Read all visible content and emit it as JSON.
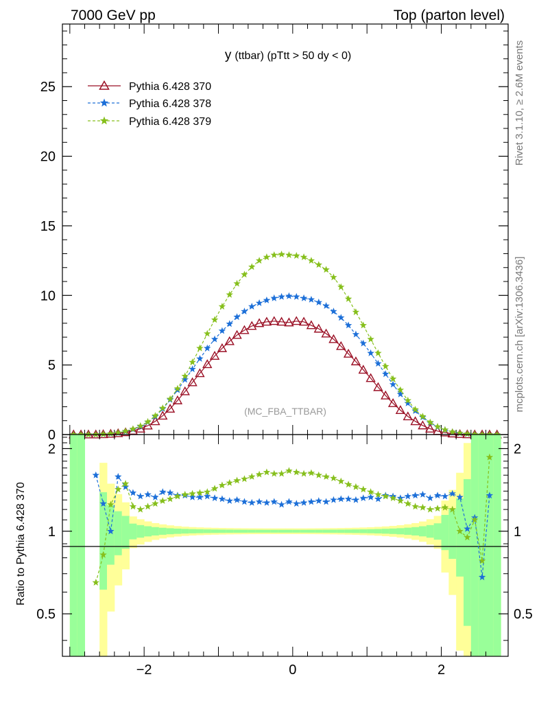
{
  "header": {
    "left": "7000 GeV pp",
    "right": "Top (parton level)"
  },
  "side_labels": {
    "rivet": "Rivet 3.1.10, ≥ 2.6M events",
    "mcplots": "mcplots.cern.ch [arXiv:1306.3436]"
  },
  "main_title_main": "y",
  "main_title_sub": "(ttbar) (pTtt > 50 dy < 0)",
  "watermark": "(MC_FBA_TTBAR)",
  "ratio_ylabel": "Ratio to Pythia 6.428 370",
  "colors": {
    "s370": "#9a0f24",
    "s378": "#1c6fd8",
    "s379": "#86bf1c",
    "band_yellow": "#ffff99",
    "band_green": "#99ff99"
  },
  "chart_data": [
    {
      "type": "line",
      "panel": "main",
      "xlim": [
        -3.1,
        2.9
      ],
      "ylim": [
        0,
        29.5
      ],
      "yticks": [
        0,
        5,
        10,
        15,
        20,
        25
      ],
      "x": [
        -2.95,
        -2.85,
        -2.75,
        -2.65,
        -2.55,
        -2.45,
        -2.35,
        -2.25,
        -2.15,
        -2.05,
        -1.95,
        -1.85,
        -1.75,
        -1.65,
        -1.55,
        -1.45,
        -1.35,
        -1.25,
        -1.15,
        -1.05,
        -0.95,
        -0.85,
        -0.75,
        -0.65,
        -0.55,
        -0.45,
        -0.35,
        -0.25,
        -0.15,
        -0.05,
        0.05,
        0.15,
        0.25,
        0.35,
        0.45,
        0.55,
        0.65,
        0.75,
        0.85,
        0.95,
        1.05,
        1.15,
        1.25,
        1.35,
        1.45,
        1.55,
        1.65,
        1.75,
        1.85,
        1.95,
        2.05,
        2.15,
        2.25,
        2.35,
        2.45,
        2.55,
        2.65,
        2.75
      ],
      "series": [
        {
          "name": "Pythia 6.428 370",
          "values": [
            0,
            0,
            0,
            0,
            0.02,
            0.05,
            0.09,
            0.16,
            0.27,
            0.42,
            0.64,
            0.95,
            1.35,
            1.85,
            2.45,
            3.1,
            3.75,
            4.4,
            5.05,
            5.65,
            6.2,
            6.7,
            7.15,
            7.5,
            7.8,
            8.0,
            8.1,
            8.15,
            8.1,
            8.05,
            8.15,
            8.1,
            7.85,
            7.6,
            7.25,
            6.85,
            6.35,
            5.8,
            5.25,
            4.65,
            4.05,
            3.4,
            2.8,
            2.25,
            1.75,
            1.3,
            0.95,
            0.65,
            0.42,
            0.25,
            0.14,
            0.07,
            0.03,
            0.01,
            0,
            0,
            0,
            0
          ]
        },
        {
          "name": "Pythia 6.428 378",
          "values": [
            0,
            0,
            0,
            0,
            0.03,
            0.06,
            0.12,
            0.22,
            0.37,
            0.58,
            0.9,
            1.3,
            1.85,
            2.5,
            3.2,
            3.95,
            4.7,
            5.45,
            6.2,
            6.85,
            7.45,
            7.95,
            8.45,
            8.85,
            9.2,
            9.45,
            9.65,
            9.8,
            9.9,
            9.95,
            9.9,
            9.8,
            9.7,
            9.5,
            9.25,
            8.85,
            8.4,
            7.85,
            7.2,
            6.55,
            5.85,
            5.1,
            4.35,
            3.6,
            2.9,
            2.25,
            1.7,
            1.25,
            0.85,
            0.55,
            0.33,
            0.18,
            0.09,
            0.04,
            0.015,
            0,
            0,
            0
          ]
        },
        {
          "name": "Pythia 6.428 379",
          "values": [
            0,
            0,
            0,
            0,
            0.03,
            0.07,
            0.13,
            0.24,
            0.4,
            0.62,
            0.92,
            1.35,
            1.9,
            2.55,
            3.3,
            4.2,
            5.2,
            6.2,
            7.25,
            8.25,
            9.2,
            10.05,
            10.85,
            11.5,
            12.05,
            12.5,
            12.75,
            12.9,
            12.95,
            12.9,
            12.85,
            12.75,
            12.5,
            12.2,
            11.85,
            11.3,
            10.6,
            9.75,
            8.8,
            7.85,
            6.85,
            5.85,
            4.9,
            4.0,
            3.2,
            2.45,
            1.8,
            1.3,
            0.88,
            0.57,
            0.34,
            0.19,
            0.1,
            0.05,
            0.02,
            0,
            0,
            0
          ]
        }
      ],
      "legend": "top-left"
    },
    {
      "type": "line",
      "panel": "ratio",
      "ylabel": "Ratio to Pythia 6.428 370",
      "xlim": [
        -3.1,
        2.9
      ],
      "ylim": [
        0.35,
        2.25
      ],
      "xticks": [
        -2,
        0,
        2
      ],
      "yticks": [
        0.5,
        1,
        2
      ],
      "x": [
        -2.65,
        -2.55,
        -2.45,
        -2.35,
        -2.25,
        -2.15,
        -2.05,
        -1.95,
        -1.85,
        -1.75,
        -1.65,
        -1.55,
        -1.45,
        -1.35,
        -1.25,
        -1.15,
        -1.05,
        -0.95,
        -0.85,
        -0.75,
        -0.65,
        -0.55,
        -0.45,
        -0.35,
        -0.25,
        -0.15,
        -0.05,
        0.05,
        0.15,
        0.25,
        0.35,
        0.45,
        0.55,
        0.65,
        0.75,
        0.85,
        0.95,
        1.05,
        1.15,
        1.25,
        1.35,
        1.45,
        1.55,
        1.65,
        1.75,
        1.85,
        1.95,
        2.05,
        2.15,
        2.25,
        2.35,
        2.45,
        2.55,
        2.65
      ],
      "series": [
        {
          "name": "Pythia 6.428 378",
          "values": [
            1.6,
            1.26,
            1.0,
            1.58,
            1.45,
            1.38,
            1.34,
            1.36,
            1.33,
            1.39,
            1.38,
            1.35,
            1.35,
            1.33,
            1.33,
            1.34,
            1.32,
            1.31,
            1.29,
            1.3,
            1.28,
            1.27,
            1.28,
            1.27,
            1.28,
            1.25,
            1.28,
            1.26,
            1.27,
            1.28,
            1.29,
            1.28,
            1.3,
            1.31,
            1.31,
            1.3,
            1.32,
            1.33,
            1.31,
            1.35,
            1.34,
            1.32,
            1.34,
            1.35,
            1.36,
            1.32,
            1.35,
            1.34,
            1.37,
            1.33,
            1.02,
            1.12,
            0.68,
            1.35
          ]
        },
        {
          "name": "Pythia 6.428 379",
          "values": [
            0.65,
            0.82,
            1.25,
            1.42,
            1.49,
            1.23,
            1.2,
            1.23,
            1.26,
            1.29,
            1.31,
            1.34,
            1.36,
            1.37,
            1.38,
            1.39,
            1.43,
            1.47,
            1.5,
            1.53,
            1.55,
            1.58,
            1.61,
            1.64,
            1.62,
            1.62,
            1.66,
            1.64,
            1.62,
            1.63,
            1.6,
            1.58,
            1.56,
            1.52,
            1.48,
            1.45,
            1.42,
            1.39,
            1.36,
            1.34,
            1.32,
            1.29,
            1.26,
            1.23,
            1.22,
            1.2,
            1.21,
            1.22,
            1.2,
            1.0,
            0.95,
            1.1,
            0.78,
            1.86
          ]
        }
      ]
    }
  ],
  "legend": {
    "items": [
      {
        "label": "Pythia 6.428 370"
      },
      {
        "label": "Pythia 6.428 378"
      },
      {
        "label": "Pythia 6.428 379"
      }
    ]
  }
}
